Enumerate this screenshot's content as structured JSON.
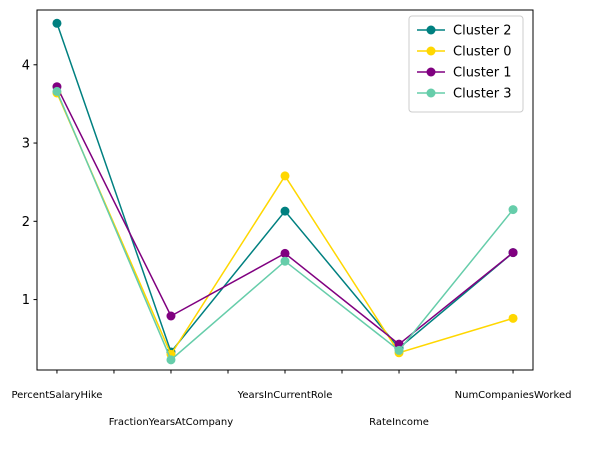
{
  "chart_data": {
    "type": "line",
    "categories": [
      "PercentSalaryHike",
      "FractionYearsAtCompany",
      "YearsInCurrentRole",
      "RateIncome",
      "NumCompaniesWorked"
    ],
    "x": [
      0,
      2,
      4,
      6,
      8
    ],
    "x_ticks": [
      0,
      1,
      2,
      3,
      4,
      5,
      6,
      7,
      8
    ],
    "x_tick_labels": [
      "PercentSalaryHike",
      "",
      "FractionYearsAtCompany",
      "",
      "YearsInCurrentRole",
      "",
      "RateIncome",
      "",
      "NumCompaniesWorked"
    ],
    "y_ticks": [
      1,
      2,
      3,
      4
    ],
    "xlim": [
      -0.35,
      8.35
    ],
    "ylim": [
      0.1,
      4.7
    ],
    "grid": false,
    "legend_position": "top-right",
    "series": [
      {
        "name": "Cluster 2",
        "color": "#008080",
        "values": [
          4.53,
          0.33,
          2.13,
          0.38,
          1.6
        ]
      },
      {
        "name": "Cluster 0",
        "color": "#FFD700",
        "values": [
          3.64,
          0.3,
          2.58,
          0.32,
          0.76
        ]
      },
      {
        "name": "Cluster 1",
        "color": "#800080",
        "values": [
          3.72,
          0.79,
          1.59,
          0.43,
          1.6
        ]
      },
      {
        "name": "Cluster 3",
        "color": "#66CDAA",
        "values": [
          3.66,
          0.23,
          1.49,
          0.35,
          2.15
        ]
      }
    ],
    "title": "",
    "xlabel": "",
    "ylabel": ""
  }
}
